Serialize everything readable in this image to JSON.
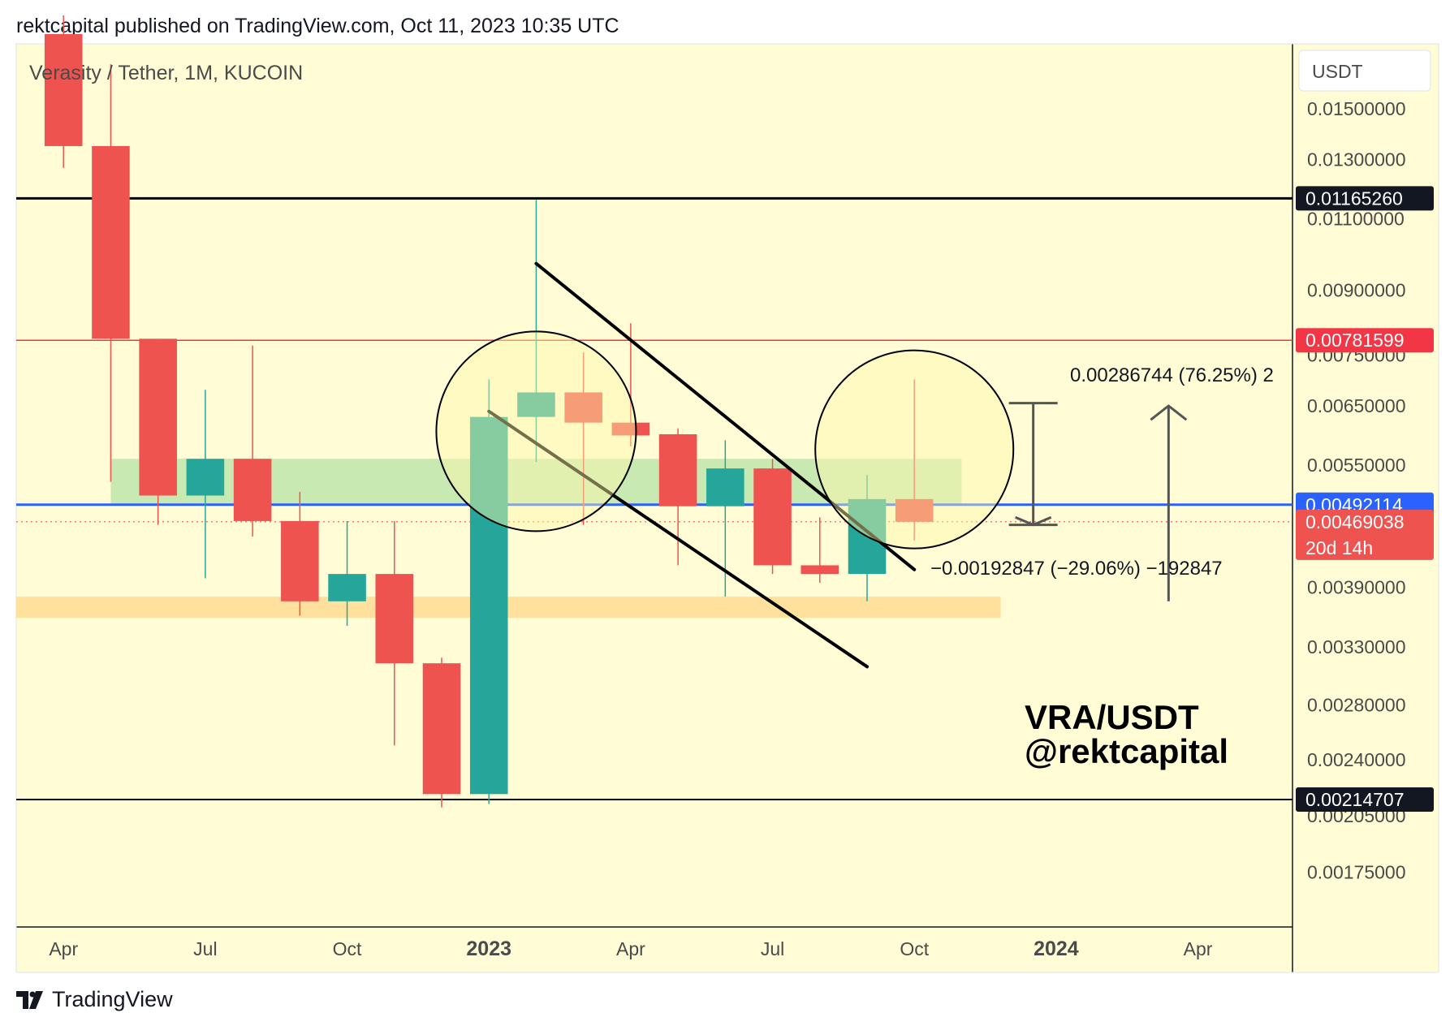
{
  "header": {
    "published": "rektcapital published on TradingView.com, Oct 11, 2023 10:35 UTC"
  },
  "footer": {
    "brand": "TradingView",
    "logo_icon": "tradingview-logo-icon"
  },
  "colors": {
    "background": "#fffcd6",
    "up": "#26a69a",
    "down": "#ef5350",
    "support_blue": "#2962ff",
    "resistance_red": "#f23645",
    "zone_green": "#b7e3a6",
    "zone_orange": "#ffd98e"
  },
  "chart_data": {
    "type": "candlestick",
    "symbol_label": "Verasity / Tether, 1M, KUCOIN",
    "currency_button": "USDT",
    "x_ticks": [
      {
        "label": "Apr",
        "date": "2022-04",
        "bold": false
      },
      {
        "label": "Jul",
        "date": "2022-07",
        "bold": false
      },
      {
        "label": "Oct",
        "date": "2022-10",
        "bold": false
      },
      {
        "label": "2023",
        "date": "2023-01",
        "bold": true
      },
      {
        "label": "Apr",
        "date": "2023-04",
        "bold": false
      },
      {
        "label": "Jul",
        "date": "2023-07",
        "bold": false
      },
      {
        "label": "Oct",
        "date": "2023-10",
        "bold": false
      },
      {
        "label": "2024",
        "date": "2024-01",
        "bold": true
      },
      {
        "label": "Apr",
        "date": "2024-04",
        "bold": false
      }
    ],
    "y_ticks": [
      "0.01500000",
      "0.01300000",
      "0.01100000",
      "0.00900000",
      "0.00750000",
      "0.00650000",
      "0.00550000",
      "0.00390000",
      "0.00330000",
      "0.00280000",
      "0.00240000",
      "0.00205000",
      "0.00175000"
    ],
    "y_scale": "log",
    "y_range": [
      0.0015,
      0.018
    ],
    "x_range": [
      "2022-03",
      "2024-06"
    ],
    "candles": [
      {
        "date": "2022-04",
        "open": 0.0185,
        "high": 0.0195,
        "low": 0.0127,
        "close": 0.0135
      },
      {
        "date": "2022-05",
        "open": 0.0135,
        "high": 0.017,
        "low": 0.00525,
        "close": 0.00785
      },
      {
        "date": "2022-06",
        "open": 0.00785,
        "high": 0.00785,
        "low": 0.00465,
        "close": 0.00505
      },
      {
        "date": "2022-07",
        "open": 0.00505,
        "high": 0.0068,
        "low": 0.004,
        "close": 0.0056
      },
      {
        "date": "2022-08",
        "open": 0.0056,
        "high": 0.0077,
        "low": 0.0045,
        "close": 0.0047
      },
      {
        "date": "2022-09",
        "open": 0.0047,
        "high": 0.0051,
        "low": 0.0036,
        "close": 0.00375
      },
      {
        "date": "2022-10",
        "open": 0.00375,
        "high": 0.0047,
        "low": 0.0035,
        "close": 0.00405
      },
      {
        "date": "2022-11",
        "open": 0.00405,
        "high": 0.0047,
        "low": 0.0025,
        "close": 0.00315
      },
      {
        "date": "2022-12",
        "open": 0.00315,
        "high": 0.0032,
        "low": 0.0021,
        "close": 0.00218
      },
      {
        "date": "2023-01",
        "open": 0.00218,
        "high": 0.007,
        "low": 0.00212,
        "close": 0.0063
      },
      {
        "date": "2023-02",
        "open": 0.0063,
        "high": 0.0116,
        "low": 0.00555,
        "close": 0.00675
      },
      {
        "date": "2023-03",
        "open": 0.00675,
        "high": 0.00755,
        "low": 0.00465,
        "close": 0.0062
      },
      {
        "date": "2023-04",
        "open": 0.0062,
        "high": 0.0082,
        "low": 0.0058,
        "close": 0.00598
      },
      {
        "date": "2023-05",
        "open": 0.006,
        "high": 0.0061,
        "low": 0.00415,
        "close": 0.0049
      },
      {
        "date": "2023-06",
        "open": 0.0049,
        "high": 0.0059,
        "low": 0.0038,
        "close": 0.00545
      },
      {
        "date": "2023-07",
        "open": 0.00545,
        "high": 0.0056,
        "low": 0.00405,
        "close": 0.00415
      },
      {
        "date": "2023-08",
        "open": 0.00415,
        "high": 0.00475,
        "low": 0.00395,
        "close": 0.00405
      },
      {
        "date": "2023-09",
        "open": 0.00405,
        "high": 0.00535,
        "low": 0.00375,
        "close": 0.005
      },
      {
        "date": "2023-10",
        "open": 0.005,
        "high": 0.007,
        "low": 0.00445,
        "close": 0.00469
      }
    ],
    "price_badges": [
      {
        "price": 0.0116526,
        "label": "0.01165260",
        "color": "#131722"
      },
      {
        "price": 0.00781599,
        "label": "0.00781599",
        "color": "#f23645"
      },
      {
        "price": 0.00492114,
        "label": "0.00492114",
        "color": "#2962ff"
      },
      {
        "price": 0.00469038,
        "label": "0.00469038",
        "sub": "20d 14h",
        "color": "#ef5350"
      },
      {
        "price": 0.00214707,
        "label": "0.00214707",
        "color": "#131722"
      }
    ],
    "annotations": {
      "upside": "0.00286744 (76.25%) 2",
      "downside": "−0.00192847 (−29.06%) −192847",
      "watermark_line1": "VRA/USDT",
      "watermark_line2": "@rektcapital"
    }
  }
}
